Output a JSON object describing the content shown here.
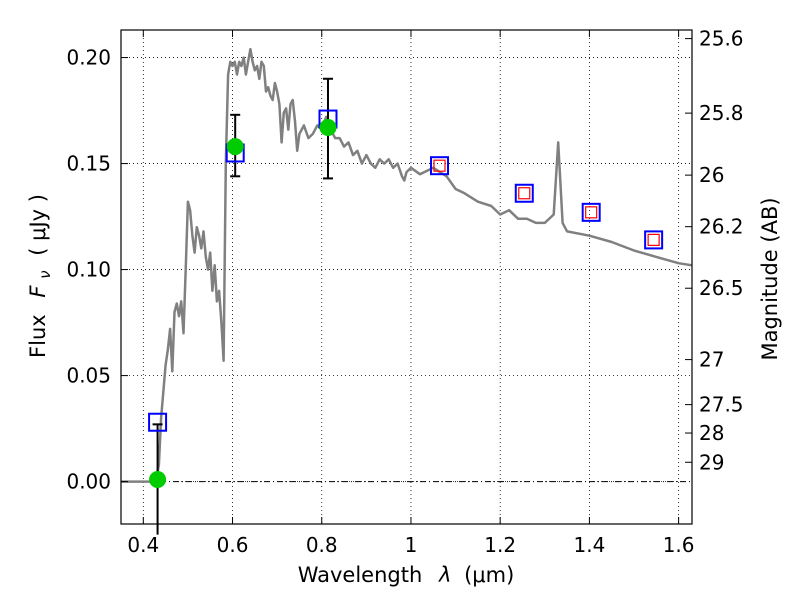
{
  "chart_data": {
    "type": "line",
    "title": "",
    "xlabel_text": "Wavelength",
    "xlabel_symbol": "λ",
    "xlabel_unit": "(μm)",
    "ylabel_left_text": "Flux",
    "ylabel_left_symbol": "F",
    "ylabel_left_subscript": "ν",
    "ylabel_left_unit": "( μJy )",
    "ylabel_right": "Magnitude (AB)",
    "xlim": [
      0.35,
      1.63
    ],
    "ylim": [
      -0.02,
      0.213
    ],
    "grid": true,
    "x_ticks": [
      {
        "value": 0.4,
        "label": "0.4"
      },
      {
        "value": 0.6,
        "label": "0.6"
      },
      {
        "value": 0.8,
        "label": "0.8"
      },
      {
        "value": 1.0,
        "label": "1"
      },
      {
        "value": 1.2,
        "label": "1.2"
      },
      {
        "value": 1.4,
        "label": "1.4"
      },
      {
        "value": 1.6,
        "label": "1.6"
      }
    ],
    "y_ticks": [
      {
        "value": 0.0,
        "label": "0.00"
      },
      {
        "value": 0.05,
        "label": "0.05"
      },
      {
        "value": 0.1,
        "label": "0.10"
      },
      {
        "value": 0.15,
        "label": "0.15"
      },
      {
        "value": 0.2,
        "label": "0.20"
      }
    ],
    "mag_ticks": [
      {
        "value": 25.6,
        "label": "25.6"
      },
      {
        "value": 25.8,
        "label": "25.8"
      },
      {
        "value": 26,
        "label": "26"
      },
      {
        "value": 26.2,
        "label": "26.2"
      },
      {
        "value": 26.5,
        "label": "26.5"
      },
      {
        "value": 27,
        "label": "27"
      },
      {
        "value": 27.5,
        "label": "27.5"
      },
      {
        "value": 28,
        "label": "28"
      },
      {
        "value": 29,
        "label": "29"
      }
    ],
    "zero_line": 0.0,
    "colors": {
      "model": "#808080",
      "observed": "#00cc00",
      "model_phot": "#0000ff",
      "upper_square": "#ff0000",
      "error": "#000000",
      "grid": "#000000",
      "zero_line": "#000000"
    },
    "series": [
      {
        "name": "model spectrum",
        "x": [
          0.35,
          0.42,
          0.43,
          0.435,
          0.44,
          0.45,
          0.455,
          0.46,
          0.465,
          0.47,
          0.475,
          0.48,
          0.485,
          0.49,
          0.495,
          0.5,
          0.505,
          0.51,
          0.515,
          0.52,
          0.525,
          0.53,
          0.535,
          0.54,
          0.545,
          0.55,
          0.555,
          0.56,
          0.565,
          0.57,
          0.575,
          0.58,
          0.585,
          0.59,
          0.595,
          0.6,
          0.605,
          0.61,
          0.615,
          0.62,
          0.625,
          0.63,
          0.635,
          0.64,
          0.645,
          0.65,
          0.655,
          0.66,
          0.665,
          0.67,
          0.675,
          0.68,
          0.685,
          0.69,
          0.695,
          0.7,
          0.705,
          0.71,
          0.715,
          0.72,
          0.725,
          0.73,
          0.735,
          0.74,
          0.745,
          0.75,
          0.76,
          0.77,
          0.78,
          0.79,
          0.8,
          0.81,
          0.82,
          0.83,
          0.84,
          0.85,
          0.86,
          0.87,
          0.88,
          0.89,
          0.9,
          0.91,
          0.92,
          0.93,
          0.94,
          0.95,
          0.96,
          0.97,
          0.98,
          0.985,
          0.99,
          1.0,
          1.02,
          1.05,
          1.08,
          1.1,
          1.12,
          1.15,
          1.18,
          1.2,
          1.22,
          1.24,
          1.26,
          1.28,
          1.3,
          1.32,
          1.33,
          1.34,
          1.35,
          1.4,
          1.45,
          1.5,
          1.55,
          1.6,
          1.63
        ],
        "y": [
          0.0,
          0.0,
          0.002,
          0.008,
          0.03,
          0.055,
          0.062,
          0.072,
          0.052,
          0.08,
          0.084,
          0.078,
          0.085,
          0.07,
          0.1,
          0.132,
          0.128,
          0.116,
          0.108,
          0.12,
          0.116,
          0.11,
          0.118,
          0.106,
          0.1,
          0.108,
          0.09,
          0.102,
          0.085,
          0.09,
          0.075,
          0.057,
          0.15,
          0.192,
          0.198,
          0.196,
          0.198,
          0.192,
          0.198,
          0.196,
          0.2,
          0.192,
          0.198,
          0.204,
          0.198,
          0.194,
          0.196,
          0.19,
          0.198,
          0.196,
          0.184,
          0.186,
          0.182,
          0.18,
          0.188,
          0.184,
          0.178,
          0.16,
          0.174,
          0.176,
          0.166,
          0.178,
          0.18,
          0.17,
          0.156,
          0.164,
          0.168,
          0.162,
          0.164,
          0.168,
          0.166,
          0.172,
          0.166,
          0.162,
          0.162,
          0.158,
          0.16,
          0.154,
          0.156,
          0.15,
          0.154,
          0.15,
          0.148,
          0.152,
          0.15,
          0.152,
          0.148,
          0.15,
          0.144,
          0.142,
          0.146,
          0.148,
          0.145,
          0.148,
          0.144,
          0.138,
          0.136,
          0.132,
          0.13,
          0.126,
          0.128,
          0.124,
          0.124,
          0.122,
          0.122,
          0.126,
          0.16,
          0.122,
          0.118,
          0.116,
          0.113,
          0.109,
          0.106,
          0.103,
          0.102
        ]
      }
    ],
    "model_photometry": [
      {
        "x": 0.432,
        "y": 0.028
      },
      {
        "x": 0.606,
        "y": 0.155
      },
      {
        "x": 0.814,
        "y": 0.171
      },
      {
        "x": 1.064,
        "y": 0.149
      },
      {
        "x": 1.254,
        "y": 0.136
      },
      {
        "x": 1.404,
        "y": 0.127
      },
      {
        "x": 1.544,
        "y": 0.114
      }
    ],
    "upper_limit_squares": [
      {
        "x": 1.064,
        "y": 0.149
      },
      {
        "x": 1.254,
        "y": 0.136
      },
      {
        "x": 1.404,
        "y": 0.127
      },
      {
        "x": 1.544,
        "y": 0.114
      }
    ],
    "observed_photometry": [
      {
        "x": 0.432,
        "y": 0.001,
        "err_low": -0.025,
        "err_high": 0.027
      },
      {
        "x": 0.606,
        "y": 0.158,
        "err_low": 0.144,
        "err_high": 0.173
      },
      {
        "x": 0.814,
        "y": 0.167,
        "err_low": 0.143,
        "err_high": 0.19
      }
    ]
  }
}
